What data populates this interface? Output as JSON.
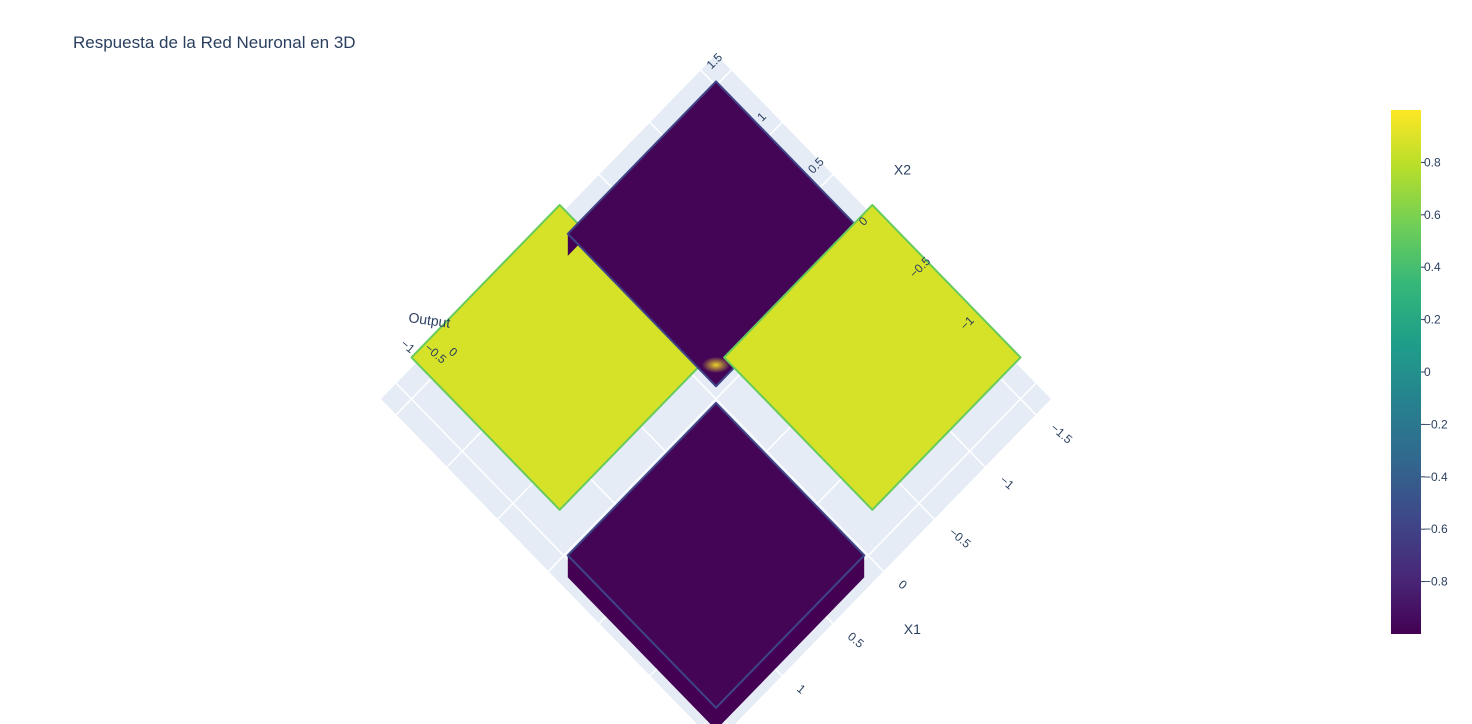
{
  "chart_data": {
    "type": "surface",
    "title": "Respuesta de la Red Neuronal en 3D",
    "colorscale": "Viridis",
    "colorscale_stops": [
      "#440154",
      "#482878",
      "#3e4989",
      "#31688e",
      "#26828e",
      "#1f9e89",
      "#35b779",
      "#6ece58",
      "#b5de2b",
      "#fde725"
    ],
    "axes": {
      "x": {
        "label": "X1",
        "ticks": [
          "−1.5",
          "−1",
          "−0.5",
          "0",
          "0.5",
          "1"
        ]
      },
      "y": {
        "label": "X2",
        "ticks": [
          "1.5",
          "1",
          "0.5",
          "0",
          "−0.5",
          "−1"
        ]
      },
      "z": {
        "label": "Output",
        "ticks": [
          "−1",
          "−0.5",
          "0"
        ]
      }
    },
    "colorbar": {
      "range": [
        -1,
        1
      ],
      "ticks": [
        {
          "value": 0.8,
          "label": "0.8"
        },
        {
          "value": 0.6,
          "label": "0.6"
        },
        {
          "value": 0.4,
          "label": "0.4"
        },
        {
          "value": 0.2,
          "label": "0.2"
        },
        {
          "value": 0.0,
          "label": "0"
        },
        {
          "value": -0.2,
          "label": "−0.2"
        },
        {
          "value": -0.4,
          "label": "−0.4"
        },
        {
          "value": -0.6,
          "label": "−0.6"
        },
        {
          "value": -0.8,
          "label": "−0.8"
        }
      ]
    },
    "surface_quadrants": [
      {
        "name": "x1-neg-x2-neg",
        "x1_sign": -1,
        "x2_sign": -1,
        "output": 0.88
      },
      {
        "name": "x1-pos-x2-pos",
        "x1_sign": 1,
        "x2_sign": 1,
        "output": 0.88
      },
      {
        "name": "x1-neg-x2-pos",
        "x1_sign": -1,
        "x2_sign": 1,
        "output": -0.98
      },
      {
        "name": "x1-pos-x2-neg",
        "x1_sign": 1,
        "x2_sign": -1,
        "output": -0.98
      }
    ]
  }
}
